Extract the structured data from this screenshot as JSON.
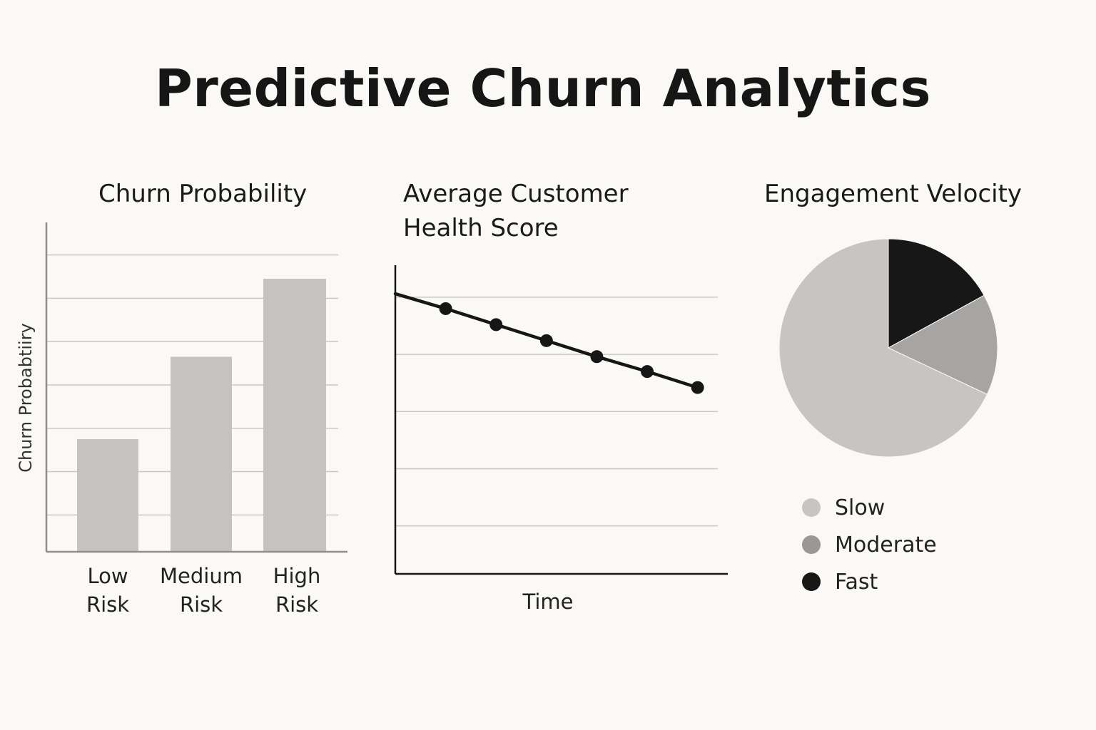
{
  "title": "Predictive Churn Analytics",
  "chart_data": [
    {
      "type": "bar",
      "title": "Churn Probability",
      "ylabel": "Churn Probabtiiry",
      "xlabel": "",
      "categories": [
        [
          "Low",
          "Risk"
        ],
        [
          "Medium",
          "Risk"
        ],
        [
          "High",
          "Risk"
        ]
      ],
      "values": [
        26,
        45,
        63
      ],
      "ylim": [
        0,
        76
      ],
      "grid": true,
      "color": "#c4c3c1"
    },
    {
      "type": "line",
      "title": [
        "Average Customer",
        "Health Score"
      ],
      "xlabel": "Time",
      "ylabel": "",
      "x": [
        0,
        1,
        2,
        3,
        4,
        5,
        6
      ],
      "values": [
        49.0,
        46.4,
        43.6,
        40.8,
        38.0,
        35.4,
        32.6
      ],
      "markers": [
        false,
        true,
        true,
        true,
        true,
        true,
        true
      ],
      "xlim": [
        0,
        6.6
      ],
      "ylim": [
        0,
        54
      ],
      "grid": true,
      "color": "#161616"
    },
    {
      "type": "pie",
      "title": "Engagement Velocity",
      "slices": [
        {
          "label": "Fast",
          "value": 17,
          "color": "#171717"
        },
        {
          "label": "Moderate",
          "value": 15,
          "color": "#a6a5a3"
        },
        {
          "label": "Slow",
          "value": 68,
          "color": "#c6c5c3"
        }
      ],
      "legend": [
        {
          "label": "Slow",
          "color": "#c6c5c3"
        },
        {
          "label": "Moderate",
          "color": "#999897"
        },
        {
          "label": "Fast",
          "color": "#171717"
        }
      ],
      "legend_position": "bottom"
    }
  ]
}
